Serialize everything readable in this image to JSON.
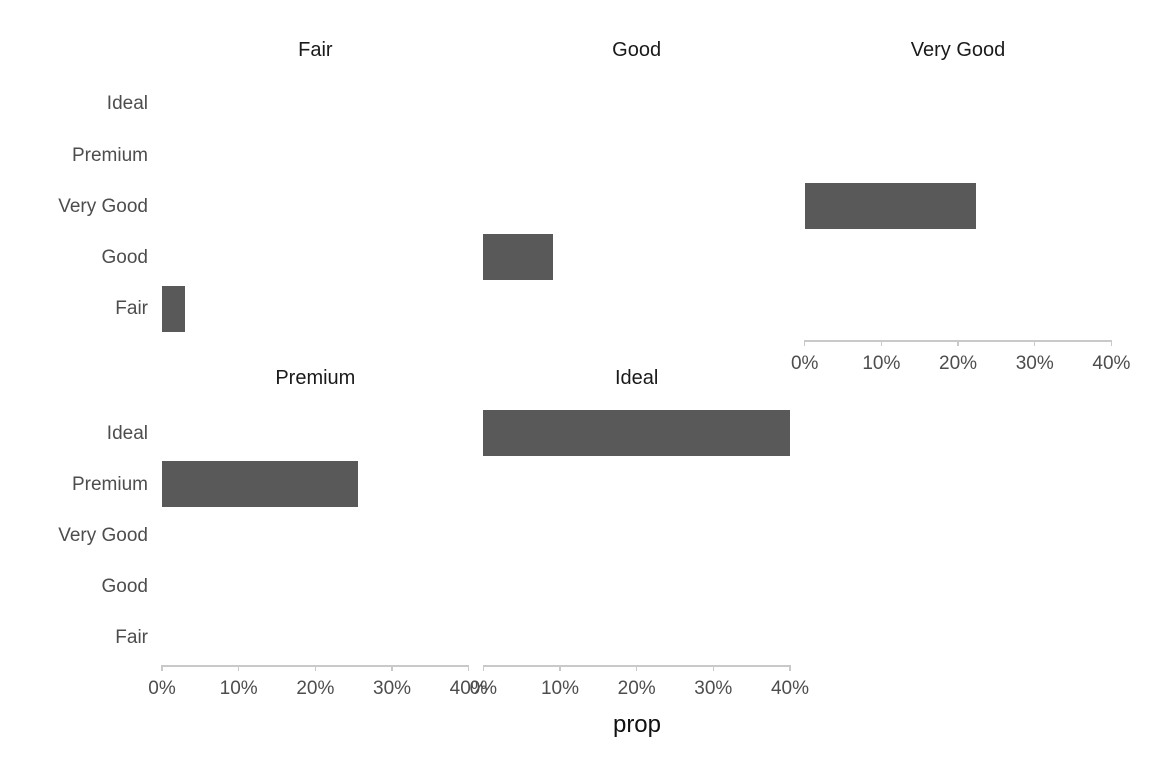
{
  "colors": {
    "bar": "#595959",
    "axis_line": "#c9c9c9",
    "tick_text": "#4d4d4d",
    "strip_text": "#1a1a1a",
    "axis_title_text": "#111111",
    "background": "#ffffff"
  },
  "chart_data": {
    "type": "bar",
    "orientation": "horizontal",
    "title": "",
    "xlabel": "prop",
    "ylabel": "",
    "grid": "off",
    "legend": "none",
    "xlim": [
      0,
      40
    ],
    "x_tick_values": [
      0,
      10,
      20,
      30,
      40
    ],
    "x_tick_labels": [
      "0%",
      "10%",
      "20%",
      "30%",
      "40%"
    ],
    "y_categories_top_to_bottom": [
      "Ideal",
      "Premium",
      "Very Good",
      "Good",
      "Fair"
    ],
    "facets": [
      {
        "title": "Fair",
        "row": 0,
        "col": 0,
        "bar_category": "Fair",
        "value_pct": 3.0,
        "has_x_axis": false
      },
      {
        "title": "Good",
        "row": 0,
        "col": 1,
        "bar_category": "Good",
        "value_pct": 9.1,
        "has_x_axis": false
      },
      {
        "title": "Very Good",
        "row": 0,
        "col": 2,
        "bar_category": "Very Good",
        "value_pct": 22.4,
        "has_x_axis": true
      },
      {
        "title": "Premium",
        "row": 1,
        "col": 0,
        "bar_category": "Premium",
        "value_pct": 25.6,
        "has_x_axis": true
      },
      {
        "title": "Ideal",
        "row": 1,
        "col": 1,
        "bar_category": "Ideal",
        "value_pct": 40.0,
        "has_x_axis": true
      }
    ]
  }
}
